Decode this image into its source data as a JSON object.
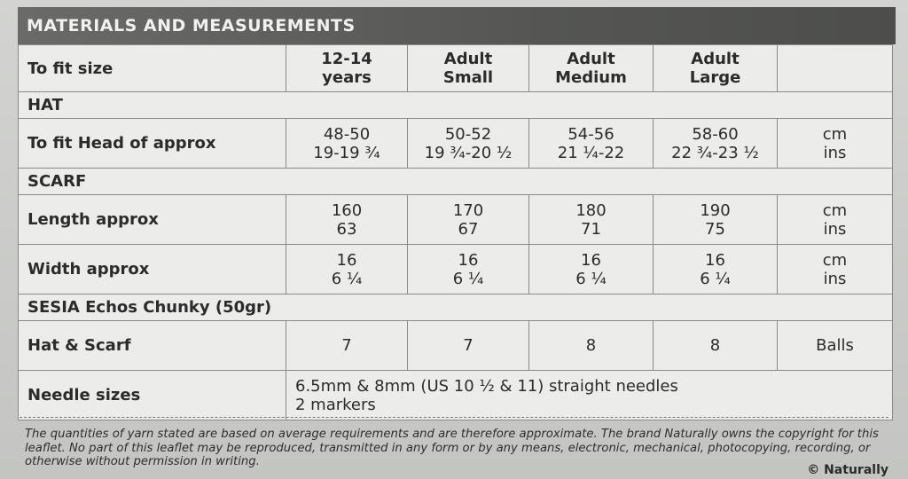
{
  "title": "MATERIALS AND MEASUREMENTS",
  "header": {
    "label": "To fit size",
    "sizes": [
      {
        "line1": "12-14",
        "line2": "years"
      },
      {
        "line1": "Adult",
        "line2": "Small"
      },
      {
        "line1": "Adult",
        "line2": "Medium"
      },
      {
        "line1": "Adult",
        "line2": "Large"
      }
    ]
  },
  "hat": {
    "section": "HAT",
    "head": {
      "label": "To fit Head of approx",
      "values": [
        {
          "cm": "48-50",
          "ins": "19-19 ¾"
        },
        {
          "cm": "50-52",
          "ins": "19 ¾-20 ½"
        },
        {
          "cm": "54-56",
          "ins": "21 ¼-22"
        },
        {
          "cm": "58-60",
          "ins": "22 ¾-23 ½"
        }
      ],
      "unit1": "cm",
      "unit2": "ins"
    }
  },
  "scarf": {
    "section": "SCARF",
    "length": {
      "label": "Length approx",
      "values": [
        {
          "cm": "160",
          "ins": "63"
        },
        {
          "cm": "170",
          "ins": "67"
        },
        {
          "cm": "180",
          "ins": "71"
        },
        {
          "cm": "190",
          "ins": "75"
        }
      ],
      "unit1": "cm",
      "unit2": "ins"
    },
    "width": {
      "label": "Width approx",
      "values": [
        {
          "cm": "16",
          "ins": "6 ¼"
        },
        {
          "cm": "16",
          "ins": "6 ¼"
        },
        {
          "cm": "16",
          "ins": "6 ¼"
        },
        {
          "cm": "16",
          "ins": "6 ¼"
        }
      ],
      "unit1": "cm",
      "unit2": "ins"
    }
  },
  "yarn": {
    "section": "SESIA Echos Chunky (50gr)",
    "hat_scarf": {
      "label": "Hat & Scarf",
      "values": [
        "7",
        "7",
        "8",
        "8"
      ],
      "unit": "Balls"
    }
  },
  "needles": {
    "label": "Needle sizes",
    "line1": "6.5mm & 8mm (US 10 ½ & 11) straight needles",
    "line2": "2 markers"
  },
  "footnote": "The quantities of yarn stated are based on average requirements and are therefore approximate. The brand Naturally owns the copyright for this leaflet. No part of this leaflet may be reproduced, transmitted in any form or by any means, electronic, mechanical, photocopying, recording, or otherwise without permission in writing.",
  "copyright": "© Naturally"
}
